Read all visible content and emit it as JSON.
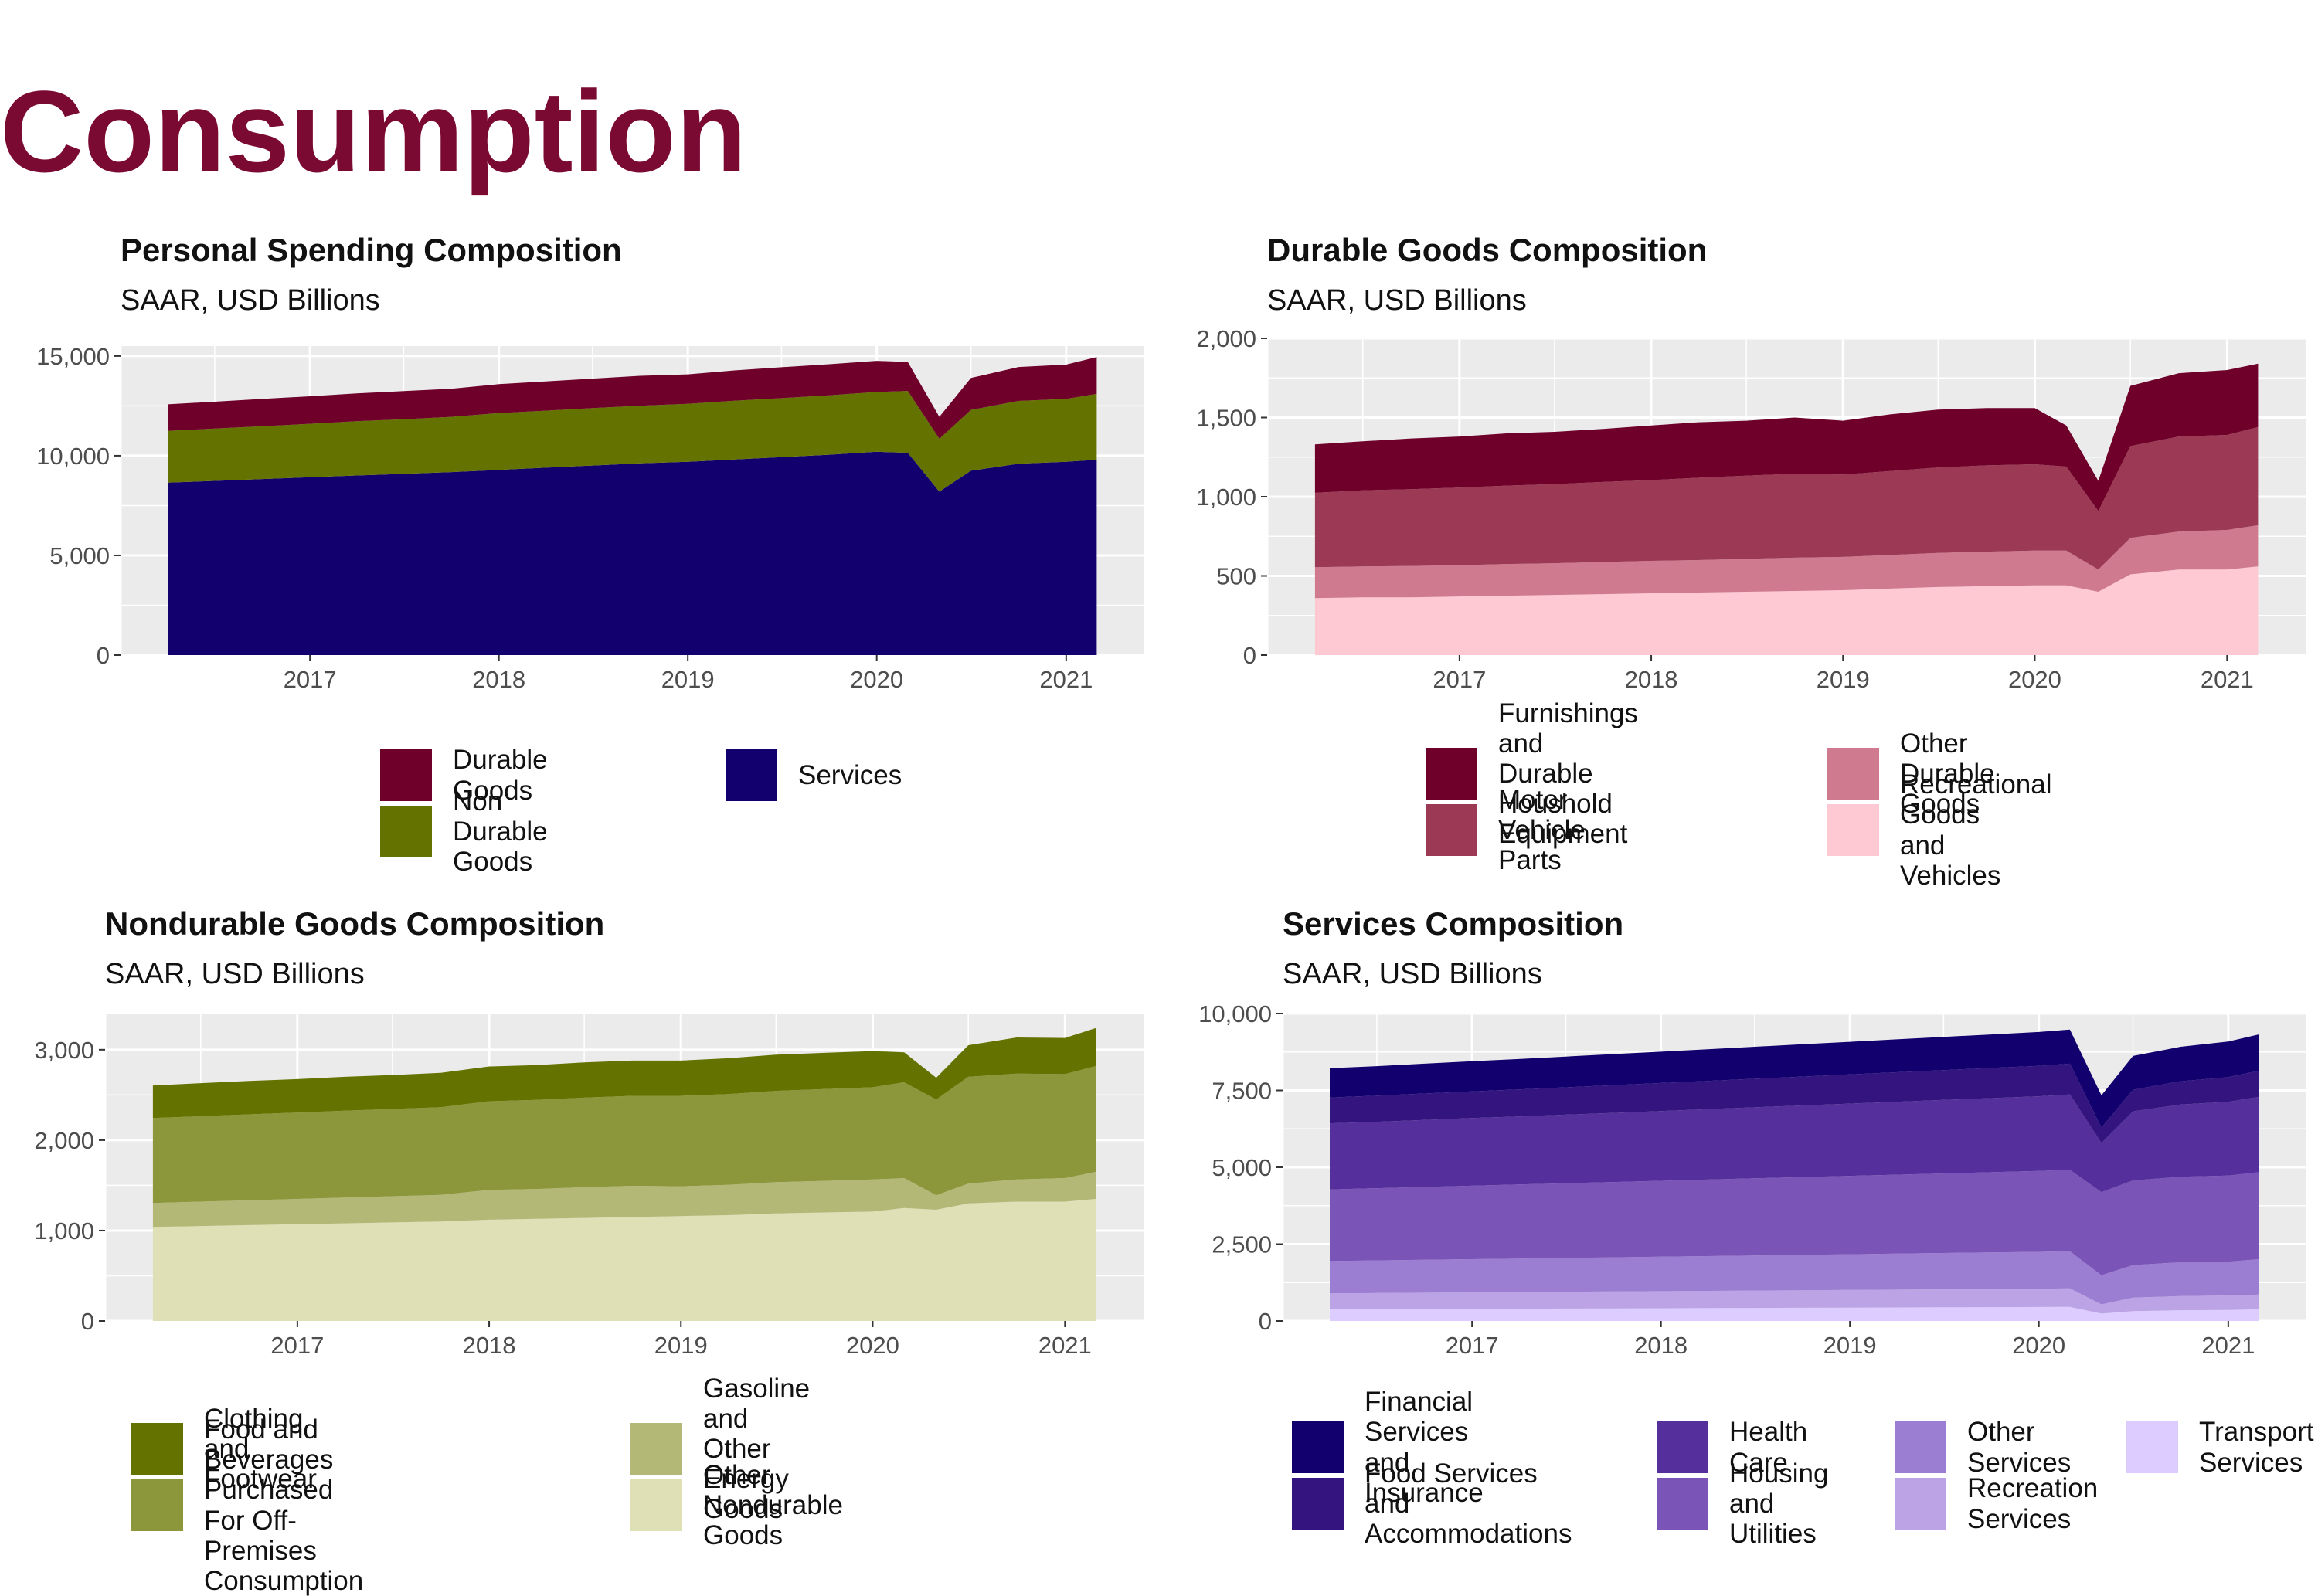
{
  "page": {
    "title": "Consumption"
  },
  "chart_data": [
    {
      "type": "area",
      "stacked": true,
      "title": "Personal Spending Composition",
      "subtitle": "SAAR, USD Billions",
      "x_ticks": [
        "2017",
        "2018",
        "2019",
        "2020",
        "2021"
      ],
      "y_ticks": [
        "0",
        "5,000",
        "10,000",
        "15,000"
      ],
      "y_tick_values": [
        0,
        5000,
        10000,
        15000
      ],
      "ylim": [
        0,
        15500
      ],
      "xlim": [
        "2016-01-01",
        "2021-06-01"
      ],
      "legend_order": [
        "Durable Goods",
        "Non Durable Goods",
        "Services"
      ],
      "legend_position": "bottom",
      "x": [
        "2016-04",
        "2016-07",
        "2016-10",
        "2017-01",
        "2017-04",
        "2017-07",
        "2017-10",
        "2018-01",
        "2018-04",
        "2018-07",
        "2018-10",
        "2019-01",
        "2019-04",
        "2019-07",
        "2019-10",
        "2020-01",
        "2020-03",
        "2020-05",
        "2020-07",
        "2020-10",
        "2021-01",
        "2021-03"
      ],
      "series": [
        {
          "name": "Services",
          "color": "#12006e",
          "values": [
            8650,
            8740,
            8830,
            8920,
            9010,
            9090,
            9180,
            9290,
            9400,
            9510,
            9620,
            9700,
            9810,
            9930,
            10050,
            10200,
            10150,
            8200,
            9250,
            9600,
            9700,
            9800
          ]
        },
        {
          "name": "Non Durable Goods",
          "color": "#647300",
          "values": [
            2600,
            2620,
            2650,
            2680,
            2720,
            2740,
            2770,
            2850,
            2860,
            2880,
            2890,
            2900,
            2950,
            2960,
            2980,
            3000,
            3100,
            2650,
            3050,
            3150,
            3150,
            3300
          ]
        },
        {
          "name": "Durable Goods",
          "color": "#6e0029",
          "values": [
            1330,
            1350,
            1370,
            1380,
            1400,
            1410,
            1410,
            1450,
            1470,
            1480,
            1500,
            1480,
            1520,
            1550,
            1560,
            1560,
            1450,
            1100,
            1600,
            1700,
            1720,
            1850
          ]
        }
      ]
    },
    {
      "type": "area",
      "stacked": true,
      "title": "Durable Goods Composition",
      "subtitle": "SAAR, USD Billions",
      "x_ticks": [
        "2017",
        "2018",
        "2019",
        "2020",
        "2021"
      ],
      "y_ticks": [
        "0",
        "500",
        "1,000",
        "1,500",
        "2,000"
      ],
      "y_tick_values": [
        0,
        500,
        1000,
        1500,
        2000
      ],
      "ylim": [
        0,
        2000
      ],
      "xlim": [
        "2016-01-01",
        "2021-06-01"
      ],
      "legend_order": [
        "Furnishings and Durable\nHoushold Equipment",
        "Motor Vehicle Parts",
        "Other Durable Goods",
        "Recreational Goods\nand Vehicles"
      ],
      "legend_position": "bottom",
      "x": [
        "2016-04",
        "2016-07",
        "2016-10",
        "2017-01",
        "2017-04",
        "2017-07",
        "2017-10",
        "2018-01",
        "2018-04",
        "2018-07",
        "2018-10",
        "2019-01",
        "2019-04",
        "2019-07",
        "2019-10",
        "2020-01",
        "2020-03",
        "2020-05",
        "2020-07",
        "2020-10",
        "2021-01",
        "2021-03"
      ],
      "series": [
        {
          "name": "Recreational Goods\nand Vehicles",
          "color": "#ffc9d4",
          "values": [
            360,
            365,
            365,
            370,
            375,
            380,
            385,
            390,
            395,
            400,
            405,
            410,
            420,
            430,
            435,
            440,
            440,
            400,
            510,
            540,
            540,
            560
          ]
        },
        {
          "name": "Other Durable Goods",
          "color": "#cf7a8e",
          "values": [
            195,
            195,
            198,
            198,
            200,
            200,
            203,
            205,
            205,
            208,
            210,
            210,
            212,
            215,
            218,
            220,
            220,
            140,
            230,
            240,
            250,
            260
          ]
        },
        {
          "name": "Motor Vehicle Parts",
          "color": "#9c3a55",
          "values": [
            470,
            480,
            485,
            490,
            495,
            500,
            505,
            510,
            520,
            525,
            530,
            520,
            530,
            540,
            545,
            545,
            530,
            370,
            580,
            600,
            600,
            620
          ]
        },
        {
          "name": "Furnishings and Durable\nHoushold Equipment",
          "color": "#6e0029",
          "values": [
            305,
            310,
            320,
            322,
            330,
            330,
            335,
            345,
            350,
            347,
            355,
            340,
            358,
            365,
            362,
            355,
            260,
            190,
            380,
            400,
            410,
            400
          ]
        }
      ]
    },
    {
      "type": "area",
      "stacked": true,
      "title": "Nondurable Goods Composition",
      "subtitle": "SAAR, USD Billions",
      "x_ticks": [
        "2017",
        "2018",
        "2019",
        "2020",
        "2021"
      ],
      "y_ticks": [
        "0",
        "1,000",
        "2,000",
        "3,000"
      ],
      "y_tick_values": [
        0,
        1000,
        2000,
        3000
      ],
      "ylim": [
        0,
        3400
      ],
      "xlim": [
        "2016-01-01",
        "2021-06-01"
      ],
      "legend_order": [
        "Clothing and Footwear",
        "Food and Beverages Purchased\nFor Off-Premises Consumption",
        "Gasoline and Other Energy Goods",
        "Other Nondurable Goods"
      ],
      "legend_position": "bottom",
      "x": [
        "2016-04",
        "2016-07",
        "2016-10",
        "2017-01",
        "2017-04",
        "2017-07",
        "2017-10",
        "2018-01",
        "2018-04",
        "2018-07",
        "2018-10",
        "2019-01",
        "2019-04",
        "2019-07",
        "2019-10",
        "2020-01",
        "2020-03",
        "2020-05",
        "2020-07",
        "2020-10",
        "2021-01",
        "2021-03"
      ],
      "series": [
        {
          "name": "Other Nondurable Goods",
          "color": "#dfe0b5",
          "values": [
            1040,
            1050,
            1060,
            1070,
            1080,
            1090,
            1100,
            1120,
            1130,
            1140,
            1150,
            1160,
            1170,
            1190,
            1200,
            1210,
            1250,
            1230,
            1300,
            1320,
            1320,
            1350
          ]
        },
        {
          "name": "Gasoline and Other Energy Goods",
          "color": "#b4b877",
          "values": [
            265,
            270,
            275,
            280,
            285,
            290,
            295,
            330,
            330,
            340,
            345,
            330,
            335,
            345,
            350,
            355,
            330,
            160,
            220,
            245,
            260,
            300
          ]
        },
        {
          "name": "Food and Beverages Purchased\nFor Off-Premises Consumption",
          "color": "#8b973a",
          "values": [
            940,
            945,
            950,
            955,
            960,
            965,
            970,
            980,
            985,
            990,
            995,
            1000,
            1005,
            1010,
            1015,
            1020,
            1060,
            1060,
            1180,
            1170,
            1150,
            1170
          ]
        },
        {
          "name": "Clothing and Footwear",
          "color": "#647300",
          "values": [
            360,
            365,
            370,
            370,
            375,
            375,
            380,
            385,
            385,
            390,
            390,
            390,
            395,
            400,
            400,
            400,
            330,
            240,
            350,
            400,
            400,
            420
          ]
        }
      ]
    },
    {
      "type": "area",
      "stacked": true,
      "title": "Services Composition",
      "subtitle": "SAAR, USD Billions",
      "x_ticks": [
        "2017",
        "2018",
        "2019",
        "2020",
        "2021"
      ],
      "y_ticks": [
        "0",
        "2,500",
        "5,000",
        "7,500",
        "10,000"
      ],
      "y_tick_values": [
        0,
        2500,
        5000,
        7500,
        10000
      ],
      "ylim": [
        0,
        10000
      ],
      "xlim": [
        "2016-01-01",
        "2021-06-01"
      ],
      "legend_order": [
        "Financial Services\nand Insurance",
        "Food Services\nand Accommodations",
        "Health\nCare",
        "Housing\nand Utilities",
        "Other\nServices",
        "Recreation\nServices",
        "Transport\nServices"
      ],
      "legend_position": "bottom",
      "x": [
        "2016-04",
        "2016-07",
        "2016-10",
        "2017-01",
        "2017-04",
        "2017-07",
        "2017-10",
        "2018-01",
        "2018-04",
        "2018-07",
        "2018-10",
        "2019-01",
        "2019-04",
        "2019-07",
        "2019-10",
        "2020-01",
        "2020-03",
        "2020-05",
        "2020-07",
        "2020-10",
        "2021-01",
        "2021-03"
      ],
      "series": [
        {
          "name": "Transport\nServices",
          "color": "#ddccff",
          "values": [
            380,
            385,
            390,
            395,
            400,
            405,
            410,
            415,
            420,
            425,
            430,
            435,
            440,
            445,
            450,
            455,
            460,
            240,
            320,
            350,
            360,
            380
          ]
        },
        {
          "name": "Recreation\nServices",
          "color": "#bba3e6",
          "values": [
            520,
            525,
            530,
            535,
            540,
            545,
            550,
            555,
            560,
            565,
            570,
            575,
            580,
            585,
            590,
            595,
            600,
            300,
            440,
            460,
            470,
            480
          ]
        },
        {
          "name": "Other\nServices",
          "color": "#9b7ed1",
          "values": [
            1050,
            1060,
            1070,
            1080,
            1090,
            1100,
            1110,
            1120,
            1130,
            1140,
            1150,
            1160,
            1170,
            1180,
            1190,
            1200,
            1210,
            950,
            1060,
            1100,
            1100,
            1150
          ]
        },
        {
          "name": "Housing\nand Utilities",
          "color": "#7b54b8",
          "values": [
            2330,
            2350,
            2370,
            2390,
            2410,
            2430,
            2450,
            2470,
            2490,
            2510,
            2530,
            2550,
            2570,
            2590,
            2610,
            2630,
            2650,
            2700,
            2750,
            2780,
            2800,
            2830
          ]
        },
        {
          "name": "Health\nCare",
          "color": "#55309c",
          "values": [
            2150,
            2160,
            2180,
            2200,
            2210,
            2230,
            2250,
            2270,
            2290,
            2310,
            2330,
            2350,
            2370,
            2390,
            2410,
            2430,
            2450,
            1600,
            2250,
            2350,
            2400,
            2450
          ]
        },
        {
          "name": "Food Services\nand Accommodations",
          "color": "#34157f",
          "values": [
            840,
            850,
            860,
            870,
            880,
            890,
            900,
            910,
            920,
            930,
            940,
            950,
            960,
            970,
            980,
            990,
            1000,
            500,
            700,
            760,
            800,
            850
          ]
        },
        {
          "name": "Financial Services\nand Insurance",
          "color": "#12006e",
          "values": [
            950,
            960,
            970,
            980,
            990,
            1000,
            1010,
            1020,
            1030,
            1040,
            1050,
            1060,
            1070,
            1080,
            1090,
            1100,
            1110,
            1050,
            1100,
            1120,
            1160,
            1180
          ]
        }
      ]
    }
  ]
}
